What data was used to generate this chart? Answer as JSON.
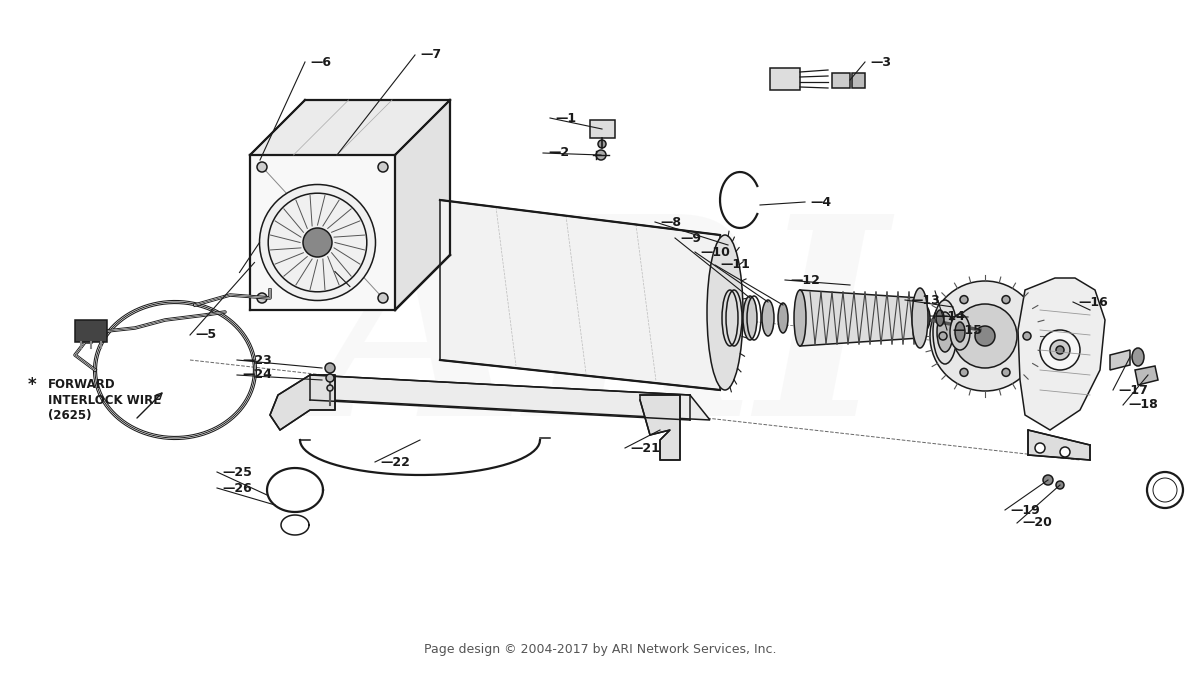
{
  "footer": "Page design © 2004-2017 by ARI Network Services, Inc.",
  "background_color": "#ffffff",
  "line_color": "#1a1a1a",
  "watermark_text": "ARI",
  "watermark_color": "#d0d0d0",
  "watermark_alpha": 0.13
}
